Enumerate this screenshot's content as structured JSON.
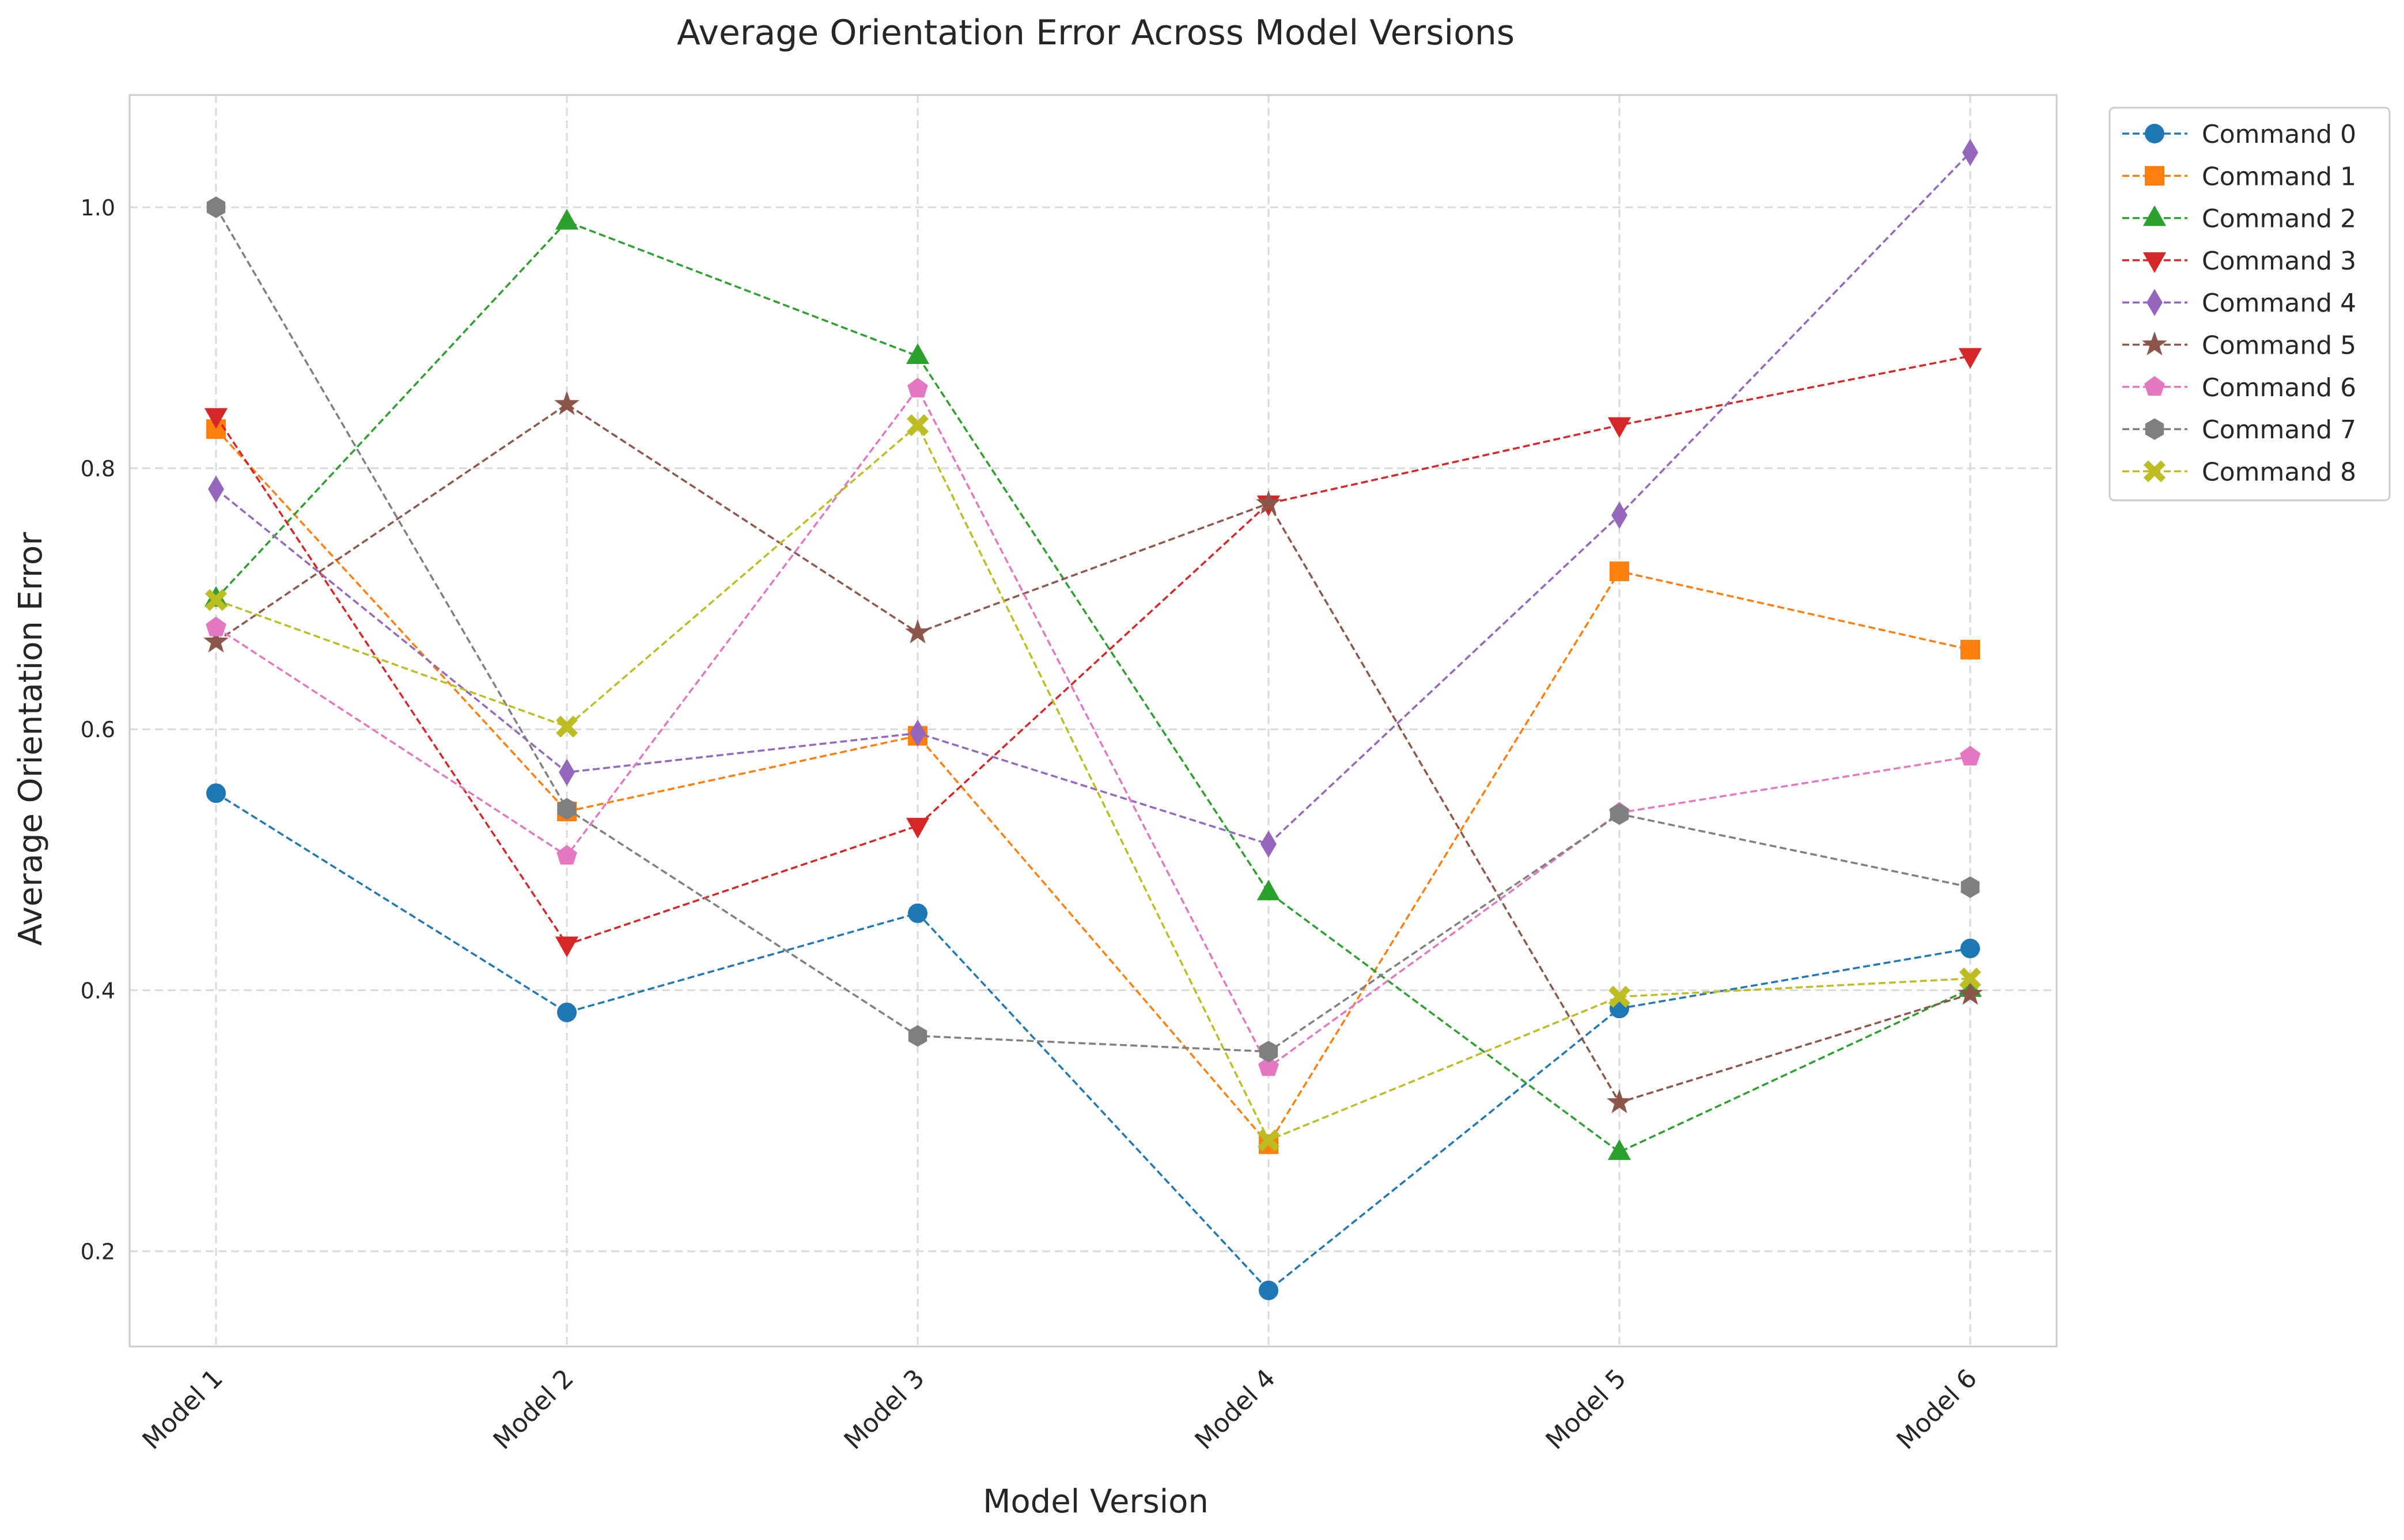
{
  "chart_data": {
    "type": "line",
    "title": "Average Orientation Error Across Model Versions",
    "xlabel": "Model Version",
    "ylabel": "Average Orientation Error",
    "categories": [
      "Model 1",
      "Model 2",
      "Model 3",
      "Model 4",
      "Model 5",
      "Model 6"
    ],
    "ylim": [
      0.127,
      1.086
    ],
    "yticks": [
      "0.2",
      "0.4",
      "0.6",
      "0.8",
      "1.0"
    ],
    "grid": true,
    "line_style": "dashed",
    "legend_position": "outside-top-right",
    "series": [
      {
        "name": "Command 0",
        "color": "#1f77b4",
        "marker": "circle",
        "values": [
          0.551,
          0.383,
          0.459,
          0.17,
          0.386,
          0.432
        ]
      },
      {
        "name": "Command 1",
        "color": "#ff7f0e",
        "marker": "square",
        "values": [
          0.83,
          0.537,
          0.595,
          0.282,
          0.721,
          0.661
        ]
      },
      {
        "name": "Command 2",
        "color": "#2ca02c",
        "marker": "triangle-up",
        "values": [
          0.7,
          0.989,
          0.886,
          0.475,
          0.276,
          0.401
        ]
      },
      {
        "name": "Command 3",
        "color": "#d62728",
        "marker": "triangle-down",
        "values": [
          0.84,
          0.435,
          0.526,
          0.773,
          0.833,
          0.886
        ]
      },
      {
        "name": "Command 4",
        "color": "#9467bd",
        "marker": "diamond",
        "values": [
          0.784,
          0.567,
          0.597,
          0.512,
          0.764,
          1.042
        ]
      },
      {
        "name": "Command 5",
        "color": "#8c564b",
        "marker": "star",
        "values": [
          0.667,
          0.849,
          0.674,
          0.773,
          0.314,
          0.397
        ]
      },
      {
        "name": "Command 6",
        "color": "#e377c2",
        "marker": "pentagon",
        "values": [
          0.678,
          0.503,
          0.861,
          0.341,
          0.536,
          0.579
        ]
      },
      {
        "name": "Command 7",
        "color": "#7f7f7f",
        "marker": "hexagon",
        "values": [
          1.0,
          0.539,
          0.365,
          0.353,
          0.535,
          0.479
        ]
      },
      {
        "name": "Command 8",
        "color": "#bcbd22",
        "marker": "x-filled",
        "values": [
          0.699,
          0.602,
          0.833,
          0.285,
          0.395,
          0.409
        ]
      }
    ]
  }
}
